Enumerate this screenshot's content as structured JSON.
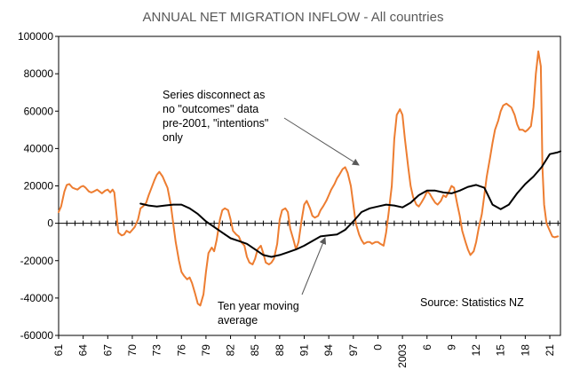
{
  "chart_data": {
    "type": "line",
    "title": "ANNUAL NET MIGRATION INFLOW - All countries",
    "xlabel": "",
    "ylabel": "",
    "xlim": [
      1961,
      2022.3
    ],
    "ylim": [
      -60000,
      100000
    ],
    "y_ticks": [
      100000,
      80000,
      60000,
      40000,
      20000,
      0,
      -20000,
      -40000,
      -60000
    ],
    "x_tick_labels": [
      {
        "x": 1961,
        "label": "61"
      },
      {
        "x": 1964,
        "label": "64"
      },
      {
        "x": 1967,
        "label": "67"
      },
      {
        "x": 1970,
        "label": "70"
      },
      {
        "x": 1973,
        "label": "73"
      },
      {
        "x": 1976,
        "label": "76"
      },
      {
        "x": 1979,
        "label": "79"
      },
      {
        "x": 1982,
        "label": "82"
      },
      {
        "x": 1985,
        "label": "85"
      },
      {
        "x": 1988,
        "label": "88"
      },
      {
        "x": 1991,
        "label": "91"
      },
      {
        "x": 1994,
        "label": "94"
      },
      {
        "x": 1997,
        "label": "97"
      },
      {
        "x": 2000,
        "label": "0"
      },
      {
        "x": 2003,
        "label": "2003"
      },
      {
        "x": 2006,
        "label": "6"
      },
      {
        "x": 2009,
        "label": "9"
      },
      {
        "x": 2012,
        "label": "12"
      },
      {
        "x": 2015,
        "label": "15"
      },
      {
        "x": 2018,
        "label": "18"
      },
      {
        "x": 2021,
        "label": "21"
      }
    ],
    "grid": false,
    "series": [
      {
        "color": "#ED7D31",
        "points": [
          [
            1961.0,
            6000
          ],
          [
            1961.3,
            9000
          ],
          [
            1961.7,
            17000
          ],
          [
            1962.0,
            20500
          ],
          [
            1962.3,
            21000
          ],
          [
            1962.7,
            19000
          ],
          [
            1963.0,
            18500
          ],
          [
            1963.3,
            18000
          ],
          [
            1963.7,
            19500
          ],
          [
            1964.0,
            20000
          ],
          [
            1964.3,
            19000
          ],
          [
            1964.7,
            17000
          ],
          [
            1965.0,
            16500
          ],
          [
            1965.3,
            17000
          ],
          [
            1965.7,
            18000
          ],
          [
            1966.0,
            17000
          ],
          [
            1966.3,
            16000
          ],
          [
            1966.7,
            17500
          ],
          [
            1967.0,
            18000
          ],
          [
            1967.3,
            16500
          ],
          [
            1967.6,
            18000
          ],
          [
            1967.8,
            16500
          ],
          [
            1968.0,
            8000
          ],
          [
            1968.3,
            -5000
          ],
          [
            1968.7,
            -6500
          ],
          [
            1969.0,
            -6000
          ],
          [
            1969.3,
            -4000
          ],
          [
            1969.7,
            -5000
          ],
          [
            1970.0,
            -3500
          ],
          [
            1970.3,
            -2000
          ],
          [
            1970.7,
            2000
          ],
          [
            1971.0,
            8000
          ],
          [
            1971.3,
            9000
          ],
          [
            1971.7,
            11000
          ],
          [
            1972.0,
            15000
          ],
          [
            1972.3,
            18500
          ],
          [
            1972.7,
            23000
          ],
          [
            1973.0,
            26000
          ],
          [
            1973.3,
            27500
          ],
          [
            1973.7,
            25000
          ],
          [
            1974.0,
            22000
          ],
          [
            1974.3,
            19000
          ],
          [
            1974.7,
            10000
          ],
          [
            1975.0,
            0
          ],
          [
            1975.3,
            -10000
          ],
          [
            1975.7,
            -20000
          ],
          [
            1976.0,
            -26000
          ],
          [
            1976.3,
            -28000
          ],
          [
            1976.7,
            -30000
          ],
          [
            1977.0,
            -29000
          ],
          [
            1977.3,
            -32000
          ],
          [
            1977.7,
            -38000
          ],
          [
            1978.0,
            -43000
          ],
          [
            1978.3,
            -44000
          ],
          [
            1978.7,
            -38000
          ],
          [
            1979.0,
            -26000
          ],
          [
            1979.3,
            -16000
          ],
          [
            1979.7,
            -13000
          ],
          [
            1980.0,
            -15000
          ],
          [
            1980.3,
            -9000
          ],
          [
            1980.7,
            2000
          ],
          [
            1981.0,
            7000
          ],
          [
            1981.3,
            8000
          ],
          [
            1981.7,
            7000
          ],
          [
            1982.0,
            2000
          ],
          [
            1982.3,
            -4000
          ],
          [
            1982.7,
            -6000
          ],
          [
            1983.0,
            -7000
          ],
          [
            1983.3,
            -10000
          ],
          [
            1983.7,
            -12000
          ],
          [
            1984.0,
            -18000
          ],
          [
            1984.3,
            -21000
          ],
          [
            1984.7,
            -22000
          ],
          [
            1985.0,
            -19000
          ],
          [
            1985.3,
            -14000
          ],
          [
            1985.7,
            -12000
          ],
          [
            1986.0,
            -16000
          ],
          [
            1986.3,
            -21000
          ],
          [
            1986.7,
            -22000
          ],
          [
            1987.0,
            -21000
          ],
          [
            1987.3,
            -19000
          ],
          [
            1987.7,
            -11000
          ],
          [
            1988.0,
            2000
          ],
          [
            1988.3,
            7000
          ],
          [
            1988.7,
            8000
          ],
          [
            1989.0,
            6000
          ],
          [
            1989.3,
            -3000
          ],
          [
            1989.7,
            -9000
          ],
          [
            1990.0,
            -14000
          ],
          [
            1990.3,
            -10000
          ],
          [
            1990.7,
            2000
          ],
          [
            1991.0,
            10000
          ],
          [
            1991.3,
            12000
          ],
          [
            1991.7,
            8000
          ],
          [
            1992.0,
            4000
          ],
          [
            1992.3,
            3000
          ],
          [
            1992.7,
            4000
          ],
          [
            1993.0,
            7000
          ],
          [
            1993.3,
            9000
          ],
          [
            1993.7,
            12000
          ],
          [
            1994.0,
            15000
          ],
          [
            1994.3,
            18000
          ],
          [
            1994.7,
            21000
          ],
          [
            1995.0,
            24000
          ],
          [
            1995.3,
            26000
          ],
          [
            1995.7,
            29000
          ],
          [
            1996.0,
            30000
          ],
          [
            1996.3,
            27000
          ],
          [
            1996.7,
            20000
          ],
          [
            1997.0,
            10000
          ],
          [
            1997.3,
            0
          ],
          [
            1997.7,
            -6000
          ],
          [
            1998.0,
            -9000
          ],
          [
            1998.3,
            -11000
          ],
          [
            1998.7,
            -10000
          ],
          [
            1999.0,
            -10000
          ],
          [
            1999.3,
            -11000
          ],
          [
            1999.7,
            -10000
          ],
          [
            2000.0,
            -10000
          ],
          [
            2000.3,
            -11000
          ],
          [
            2000.7,
            -12000
          ],
          [
            2001.0,
            -5000
          ],
          [
            2001.3,
            5000
          ],
          [
            2001.7,
            20000
          ],
          [
            2002.0,
            45000
          ],
          [
            2002.3,
            58000
          ],
          [
            2002.7,
            61000
          ],
          [
            2003.0,
            58000
          ],
          [
            2003.3,
            45000
          ],
          [
            2003.7,
            30000
          ],
          [
            2004.0,
            20000
          ],
          [
            2004.3,
            14000
          ],
          [
            2004.7,
            10000
          ],
          [
            2005.0,
            9000
          ],
          [
            2005.3,
            11000
          ],
          [
            2005.7,
            14000
          ],
          [
            2006.0,
            17000
          ],
          [
            2006.3,
            16000
          ],
          [
            2006.7,
            13000
          ],
          [
            2007.0,
            11000
          ],
          [
            2007.3,
            10000
          ],
          [
            2007.7,
            12000
          ],
          [
            2008.0,
            15000
          ],
          [
            2008.3,
            14000
          ],
          [
            2008.7,
            17000
          ],
          [
            2009.0,
            20000
          ],
          [
            2009.3,
            19000
          ],
          [
            2009.7,
            10000
          ],
          [
            2010.0,
            4000
          ],
          [
            2010.3,
            -4000
          ],
          [
            2010.7,
            -10000
          ],
          [
            2011.0,
            -14000
          ],
          [
            2011.3,
            -17000
          ],
          [
            2011.7,
            -15000
          ],
          [
            2012.0,
            -10000
          ],
          [
            2012.3,
            -3000
          ],
          [
            2012.7,
            5000
          ],
          [
            2013.0,
            15000
          ],
          [
            2013.3,
            25000
          ],
          [
            2013.7,
            35000
          ],
          [
            2014.0,
            43000
          ],
          [
            2014.3,
            50000
          ],
          [
            2014.7,
            55000
          ],
          [
            2015.0,
            60000
          ],
          [
            2015.3,
            63000
          ],
          [
            2015.7,
            64000
          ],
          [
            2016.0,
            63000
          ],
          [
            2016.3,
            62000
          ],
          [
            2016.7,
            58000
          ],
          [
            2017.0,
            53000
          ],
          [
            2017.3,
            50000
          ],
          [
            2017.7,
            50000
          ],
          [
            2018.0,
            49000
          ],
          [
            2018.3,
            50000
          ],
          [
            2018.7,
            52000
          ],
          [
            2019.0,
            62000
          ],
          [
            2019.3,
            80000
          ],
          [
            2019.6,
            92000
          ],
          [
            2019.9,
            84000
          ],
          [
            2020.0,
            58000
          ],
          [
            2020.1,
            30000
          ],
          [
            2020.3,
            10000
          ],
          [
            2020.6,
            0
          ],
          [
            2021.0,
            -4000
          ],
          [
            2021.3,
            -7000
          ],
          [
            2021.6,
            -7500
          ],
          [
            2022.0,
            -7000
          ]
        ]
      },
      {
        "color": "#000000",
        "points": [
          [
            1971.0,
            10500
          ],
          [
            1972.0,
            9500
          ],
          [
            1973.0,
            9000
          ],
          [
            1974.0,
            9500
          ],
          [
            1975.0,
            10000
          ],
          [
            1976.0,
            10000
          ],
          [
            1977.0,
            8000
          ],
          [
            1978.0,
            5000
          ],
          [
            1979.0,
            1000
          ],
          [
            1980.0,
            -2000
          ],
          [
            1981.0,
            -5000
          ],
          [
            1982.0,
            -8000
          ],
          [
            1983.0,
            -9500
          ],
          [
            1984.0,
            -11000
          ],
          [
            1985.0,
            -14000
          ],
          [
            1986.0,
            -17000
          ],
          [
            1987.0,
            -18000
          ],
          [
            1988.0,
            -17000
          ],
          [
            1989.0,
            -15500
          ],
          [
            1990.0,
            -14000
          ],
          [
            1991.0,
            -12000
          ],
          [
            1992.0,
            -9500
          ],
          [
            1993.0,
            -7000
          ],
          [
            1994.0,
            -6500
          ],
          [
            1995.0,
            -6000
          ],
          [
            1996.0,
            -3500
          ],
          [
            1997.0,
            1000
          ],
          [
            1998.0,
            6000
          ],
          [
            1999.0,
            8000
          ],
          [
            2000.0,
            9000
          ],
          [
            2001.0,
            10000
          ],
          [
            2002.0,
            9500
          ],
          [
            2003.0,
            8500
          ],
          [
            2004.0,
            11000
          ],
          [
            2005.0,
            15000
          ],
          [
            2006.0,
            17500
          ],
          [
            2007.0,
            17500
          ],
          [
            2008.0,
            16500
          ],
          [
            2009.0,
            16000
          ],
          [
            2010.0,
            17500
          ],
          [
            2011.0,
            19500
          ],
          [
            2012.0,
            20500
          ],
          [
            2013.0,
            19000
          ],
          [
            2014.0,
            10000
          ],
          [
            2015.0,
            7500
          ],
          [
            2016.0,
            10000
          ],
          [
            2017.0,
            16000
          ],
          [
            2018.0,
            21000
          ],
          [
            2019.0,
            25000
          ],
          [
            2020.0,
            30000
          ],
          [
            2021.0,
            37000
          ],
          [
            2022.0,
            38000
          ],
          [
            2022.3,
            38500
          ]
        ]
      }
    ],
    "annotations": [
      {
        "lines": [
          "Series disconnect as",
          "no \"outcomes\" data",
          "pre-2001, \"intentions\"",
          "only"
        ],
        "arrow_to": [
          1998.5,
          31000
        ]
      },
      {
        "lines": [
          "Ten year moving",
          "average"
        ],
        "arrow_to": [
          1994.5,
          -9000
        ]
      }
    ],
    "source": "Source: Statistics NZ"
  }
}
